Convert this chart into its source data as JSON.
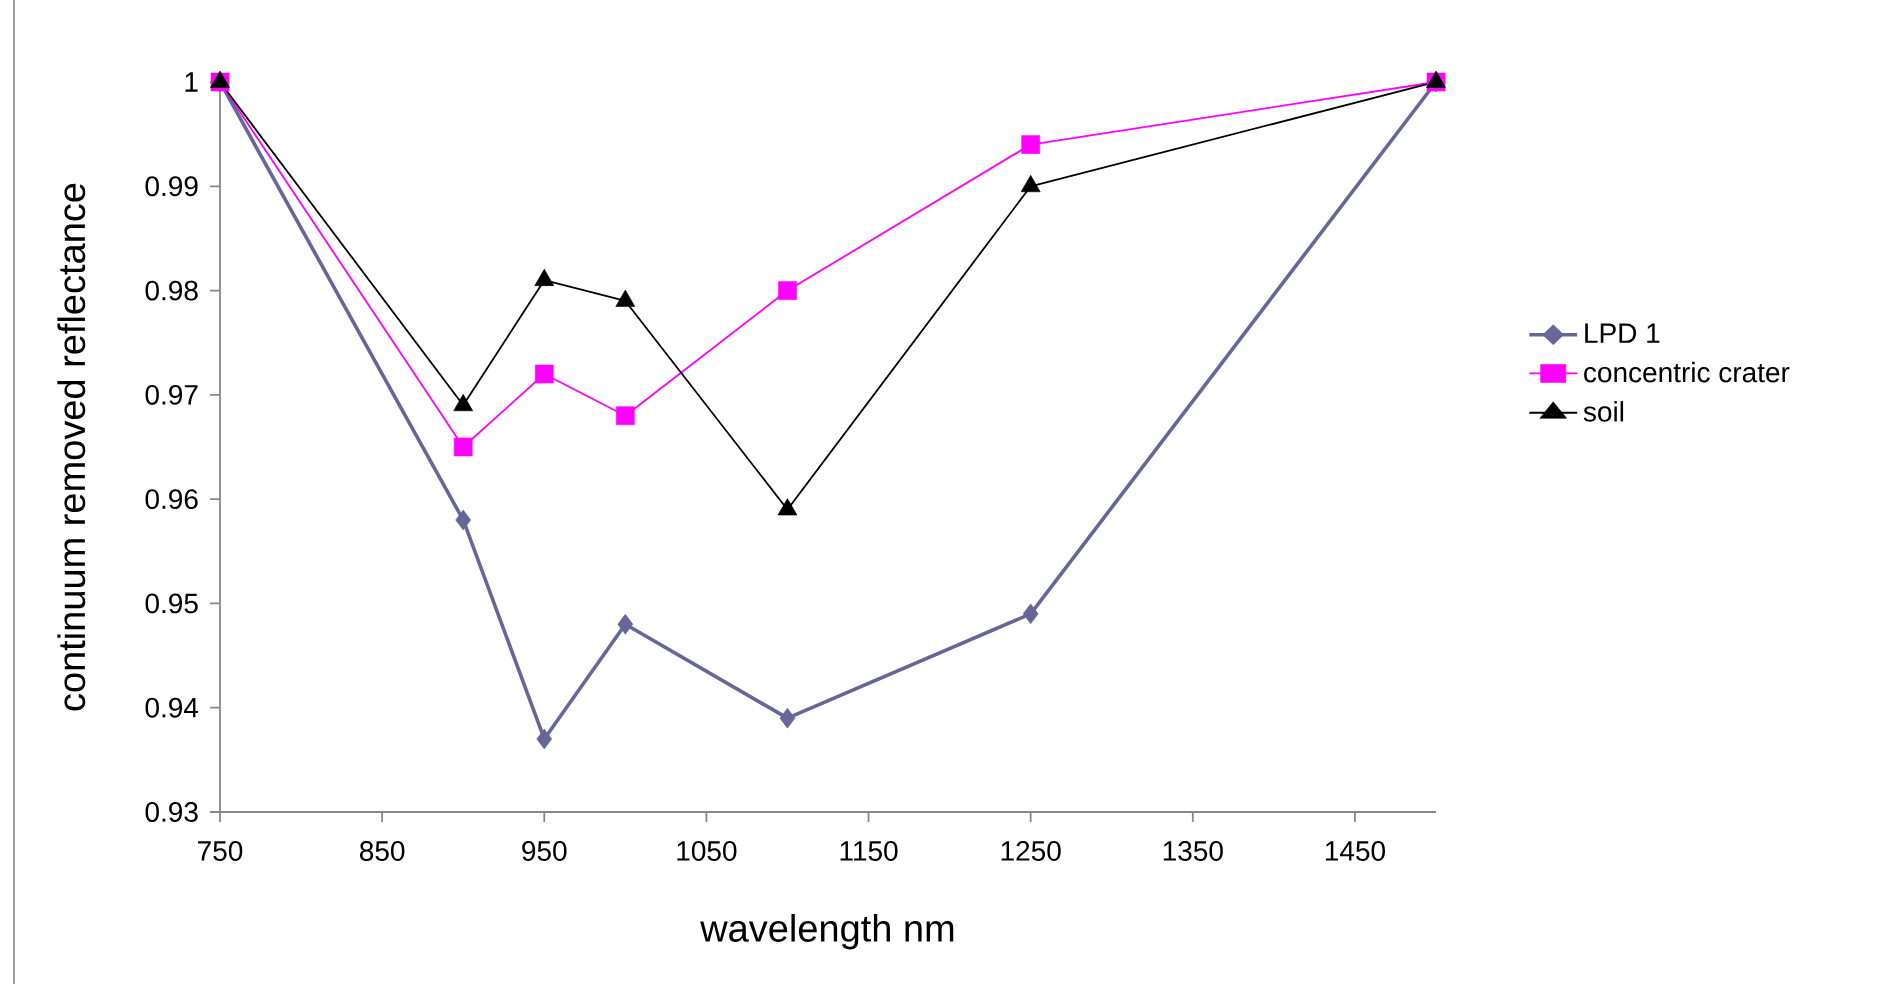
{
  "chart_data": {
    "type": "line",
    "xlabel": "wavelength nm",
    "ylabel": "continuum removed reflectance",
    "x": [
      750,
      900,
      950,
      1000,
      1100,
      1250,
      1500
    ],
    "series": [
      {
        "name": "LPD 1",
        "color": "#666699",
        "marker": "diamond",
        "values": [
          1,
          0.958,
          0.937,
          0.948,
          0.939,
          0.949,
          1
        ]
      },
      {
        "name": "concentric crater",
        "color": "#ff00ff",
        "marker": "square",
        "values": [
          1,
          0.965,
          0.972,
          0.968,
          0.98,
          0.994,
          1
        ]
      },
      {
        "name": "soil",
        "color": "#000000",
        "marker": "triangle",
        "values": [
          1,
          0.969,
          0.981,
          0.979,
          0.959,
          0.99,
          1
        ]
      }
    ],
    "xlim": [
      750,
      1500
    ],
    "xticks": [
      750,
      850,
      950,
      1050,
      1150,
      1250,
      1350,
      1450
    ],
    "ylim": [
      0.93,
      1
    ],
    "yticks": [
      0.93,
      0.94,
      0.95,
      0.96,
      0.97,
      0.98,
      0.99,
      1
    ],
    "grid": false,
    "legend": "right"
  }
}
